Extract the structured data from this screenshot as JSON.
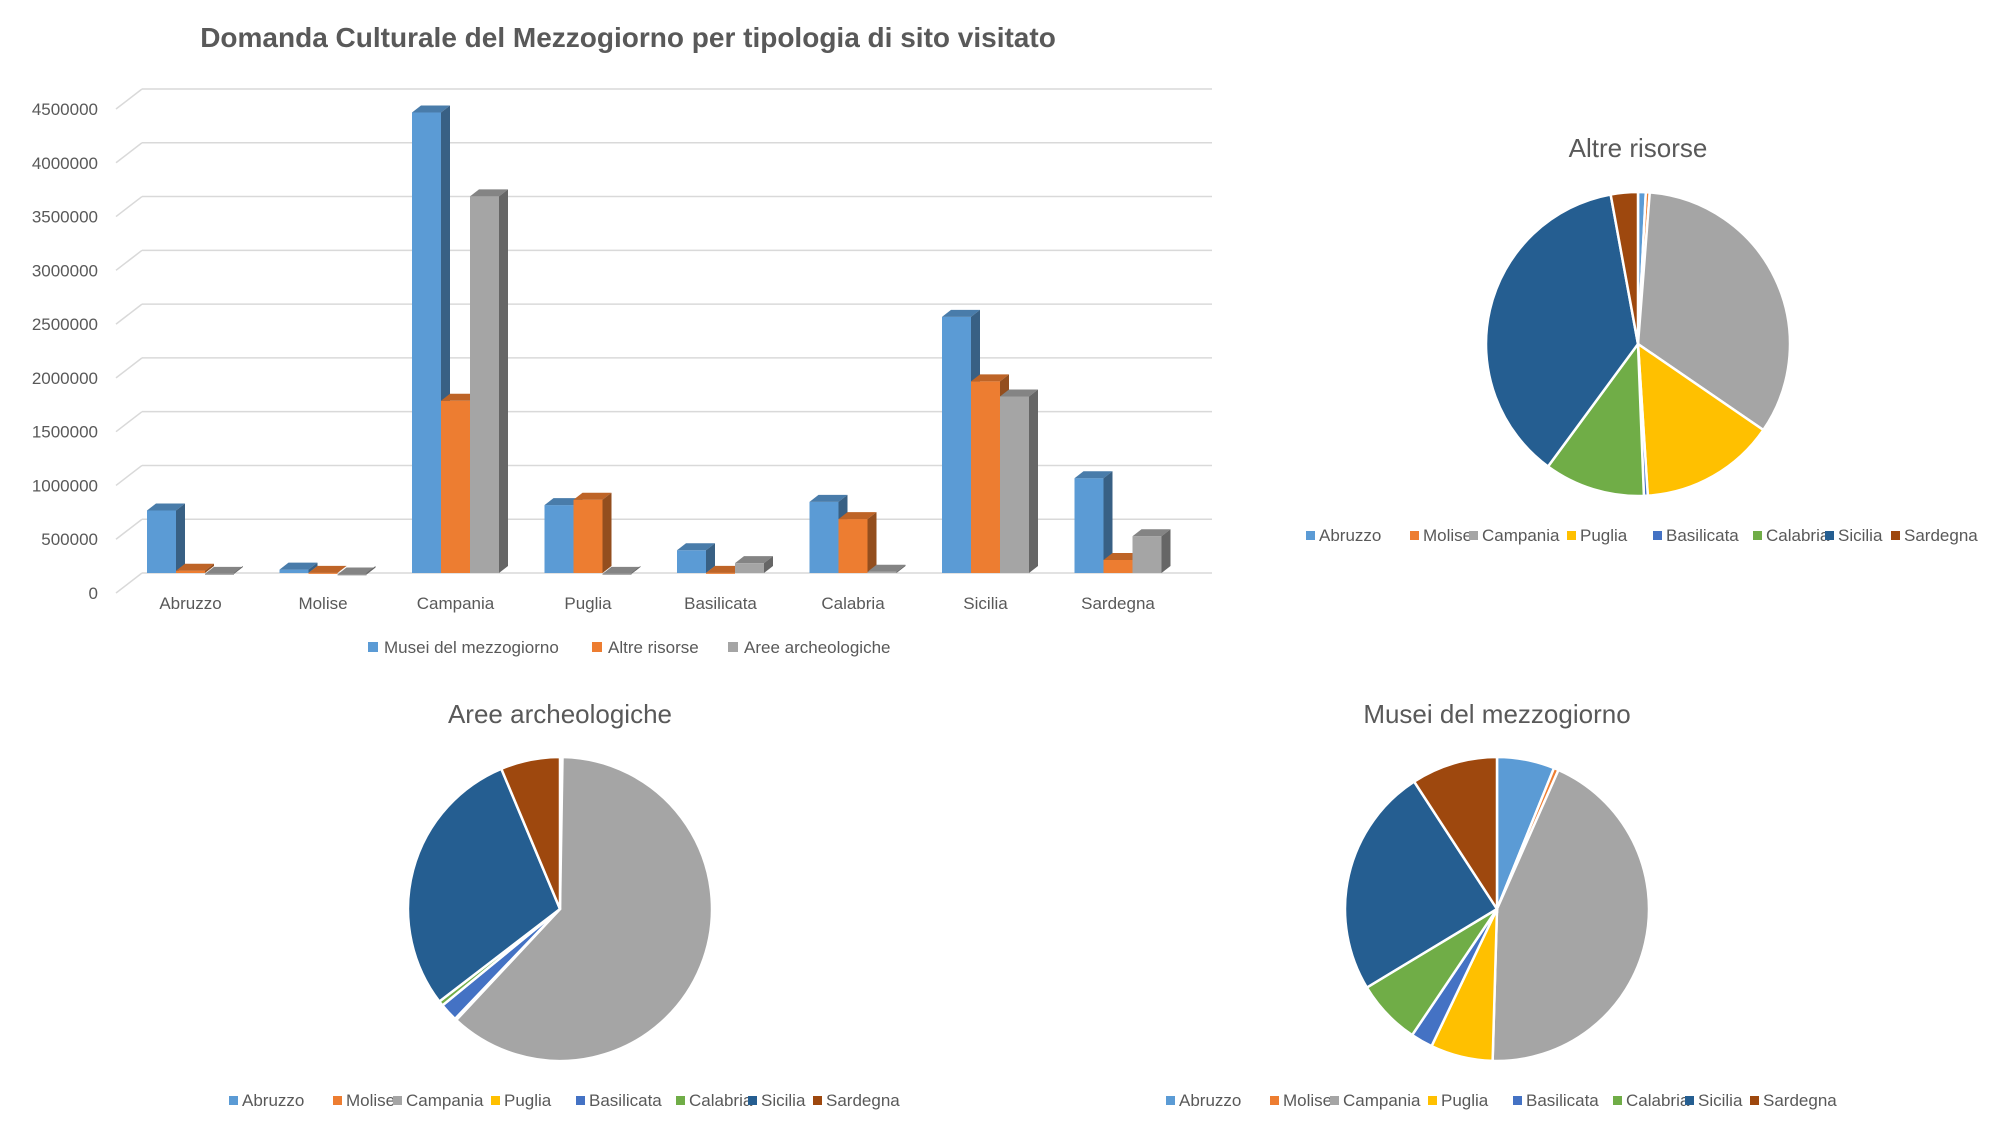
{
  "colors": {
    "Abruzzo": "#5b9bd5",
    "Molise": "#ed7d31",
    "Campania": "#a5a5a5",
    "Puglia": "#ffc000",
    "Basilicata": "#4472c4",
    "Calabria": "#70ad47",
    "Sicilia": "#255e91",
    "Sardegna": "#9e480e",
    "series": [
      "#5b9bd5",
      "#ed7d31",
      "#a5a5a5"
    ]
  },
  "chart_data": [
    {
      "type": "bar",
      "title": "Domanda Culturale del Mezzogiorno per tipologia di sito visitato",
      "categories": [
        "Abruzzo",
        "Molise",
        "Campania",
        "Puglia",
        "Basilicata",
        "Calabria",
        "Sicilia",
        "Sardegna"
      ],
      "series": [
        {
          "name": "Musei del mezzogiorno",
          "values": [
            600000,
            50000,
            4300000,
            650000,
            230000,
            680000,
            2400000,
            900000
          ]
        },
        {
          "name": "Altre risorse",
          "values": [
            40000,
            20000,
            1620000,
            700000,
            20000,
            520000,
            1800000,
            140000
          ]
        },
        {
          "name": "Aree archeologiche",
          "values": [
            10000,
            5000,
            3520000,
            10000,
            110000,
            30000,
            1660000,
            360000
          ]
        }
      ],
      "yticks": [
        0,
        500000,
        1000000,
        1500000,
        2000000,
        2500000,
        3000000,
        3500000,
        4000000,
        4500000
      ],
      "ylim": [
        0,
        4500000
      ],
      "grid": true,
      "legend": "bottom"
    },
    {
      "type": "pie",
      "title": "Altre risorse",
      "labels": [
        "Abruzzo",
        "Molise",
        "Campania",
        "Puglia",
        "Basilicata",
        "Calabria",
        "Sicilia",
        "Sardegna"
      ],
      "values": [
        40000,
        20000,
        1620000,
        700000,
        20000,
        520000,
        1800000,
        140000
      ],
      "legend": "bottom"
    },
    {
      "type": "pie",
      "title": "Aree archeologiche",
      "labels": [
        "Abruzzo",
        "Molise",
        "Campania",
        "Puglia",
        "Basilicata",
        "Calabria",
        "Sicilia",
        "Sardegna"
      ],
      "values": [
        10000,
        5000,
        3520000,
        10000,
        110000,
        30000,
        1660000,
        360000
      ],
      "legend": "bottom"
    },
    {
      "type": "pie",
      "title": "Musei del mezzogiorno",
      "labels": [
        "Abruzzo",
        "Molise",
        "Campania",
        "Puglia",
        "Basilicata",
        "Calabria",
        "Sicilia",
        "Sardegna"
      ],
      "values": [
        600000,
        50000,
        4300000,
        650000,
        230000,
        680000,
        2400000,
        900000
      ],
      "legend": "bottom"
    }
  ]
}
